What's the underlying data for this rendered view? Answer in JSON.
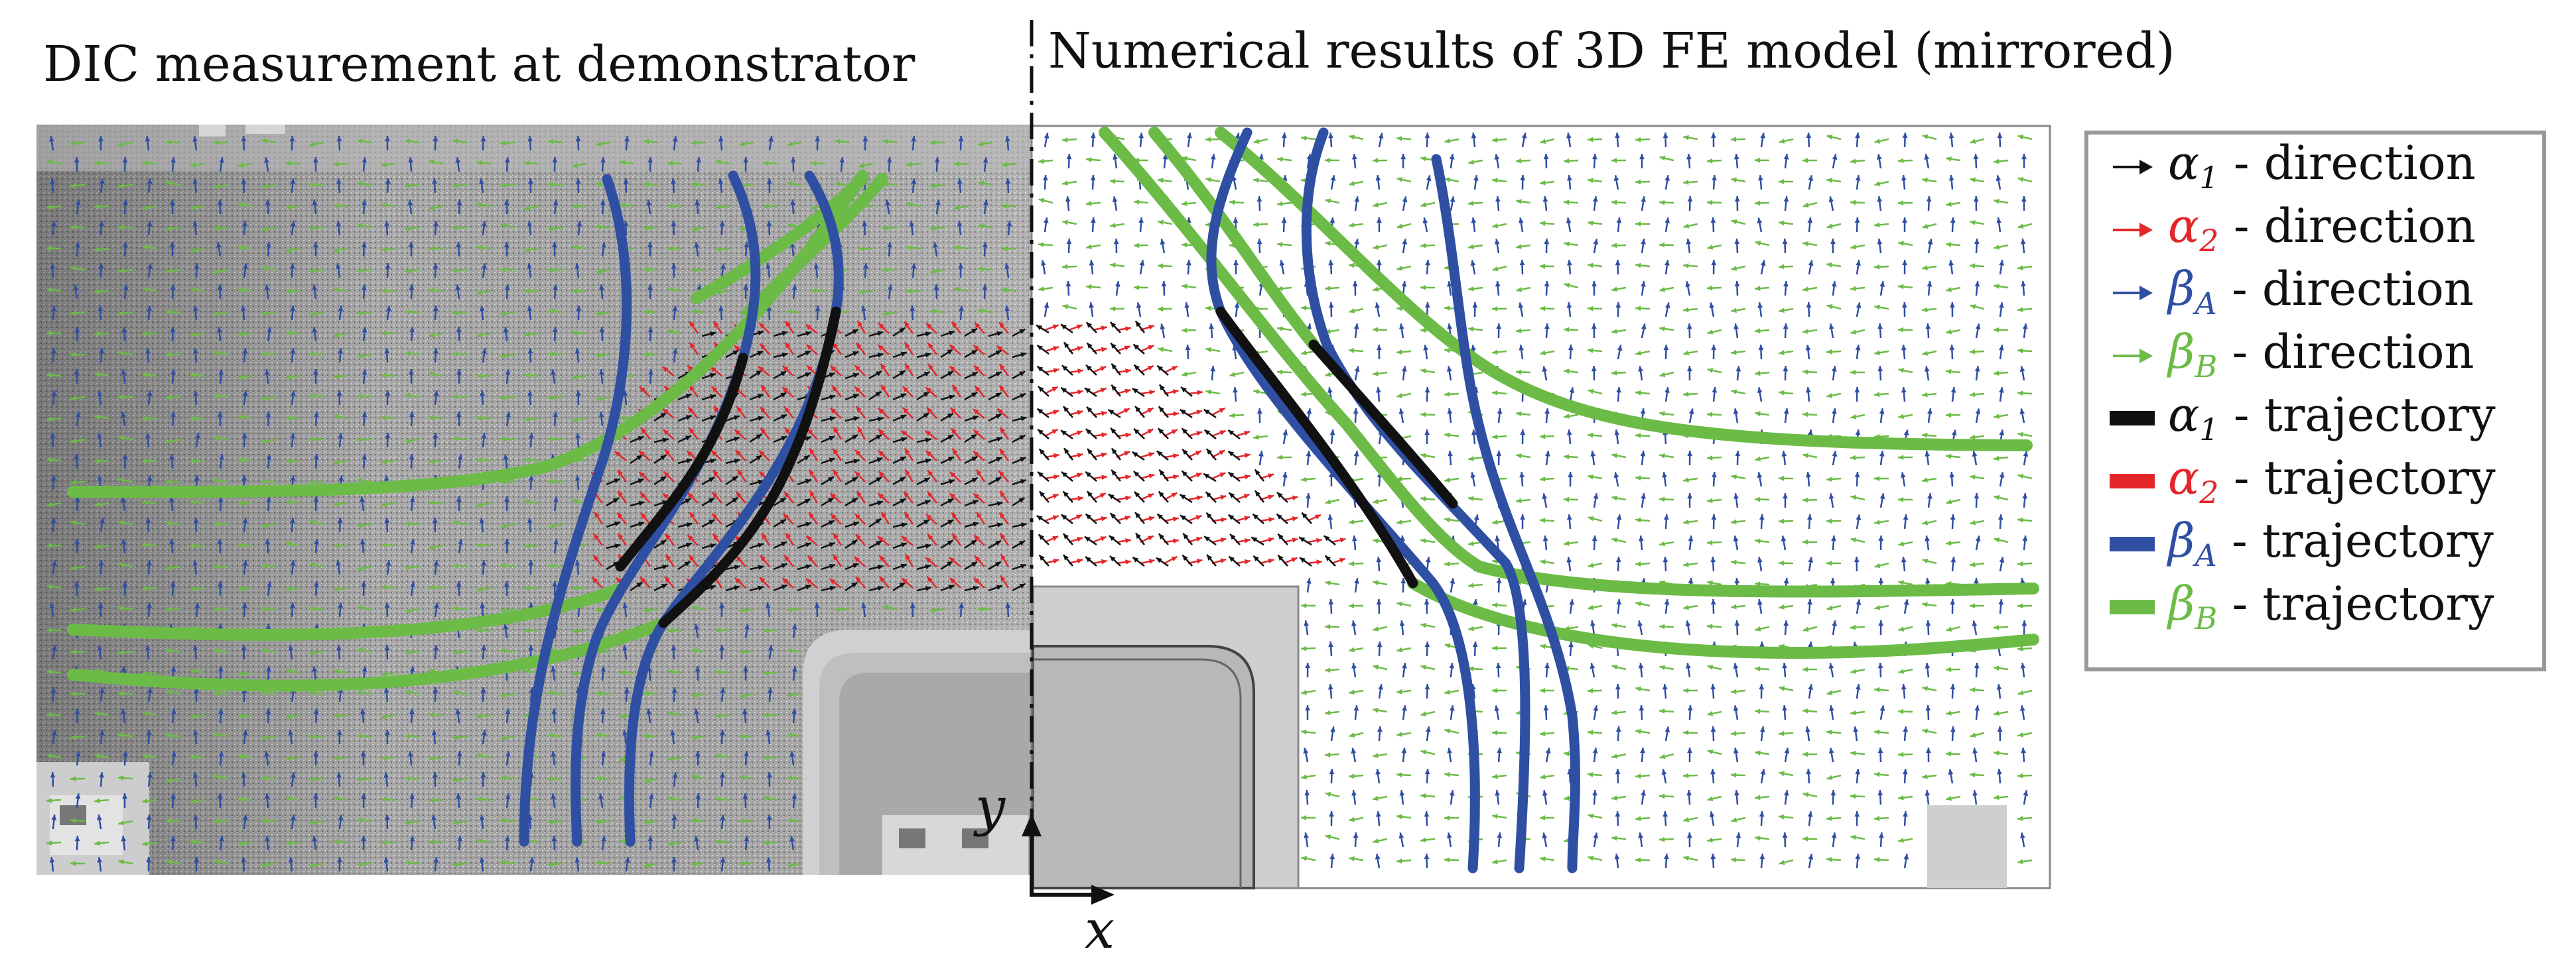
{
  "titles": {
    "left": "DIC measurement at demonstrator",
    "right": "Numerical results of 3D FE model (mirrored)"
  },
  "axes": {
    "x": "x",
    "y": "y"
  },
  "colors": {
    "alpha1": "#111111",
    "alpha2": "#e3262a",
    "betaA": "#2f4fa3",
    "betaB": "#6cbb47"
  },
  "legend": {
    "items": [
      {
        "key": "alpha1",
        "symbol": "α",
        "sub": "1",
        "label": " - direction",
        "kind": "arrow"
      },
      {
        "key": "alpha2",
        "symbol": "α",
        "sub": "2",
        "label": " - direction",
        "kind": "arrow"
      },
      {
        "key": "betaA",
        "symbol": "β",
        "sub": "A",
        "label": " - direction",
        "kind": "arrow"
      },
      {
        "key": "betaB",
        "symbol": "β",
        "sub": "B",
        "label": " - direction",
        "kind": "arrow"
      },
      {
        "key": "alpha1",
        "symbol": "α",
        "sub": "1",
        "label": " - trajectory",
        "kind": "line"
      },
      {
        "key": "alpha2",
        "symbol": "α",
        "sub": "2",
        "label": " - trajectory",
        "kind": "line"
      },
      {
        "key": "betaA",
        "symbol": "β",
        "sub": "A",
        "label": " - trajectory",
        "kind": "line"
      },
      {
        "key": "betaB",
        "symbol": "β",
        "sub": "B",
        "label": " - trajectory",
        "kind": "line"
      }
    ]
  }
}
